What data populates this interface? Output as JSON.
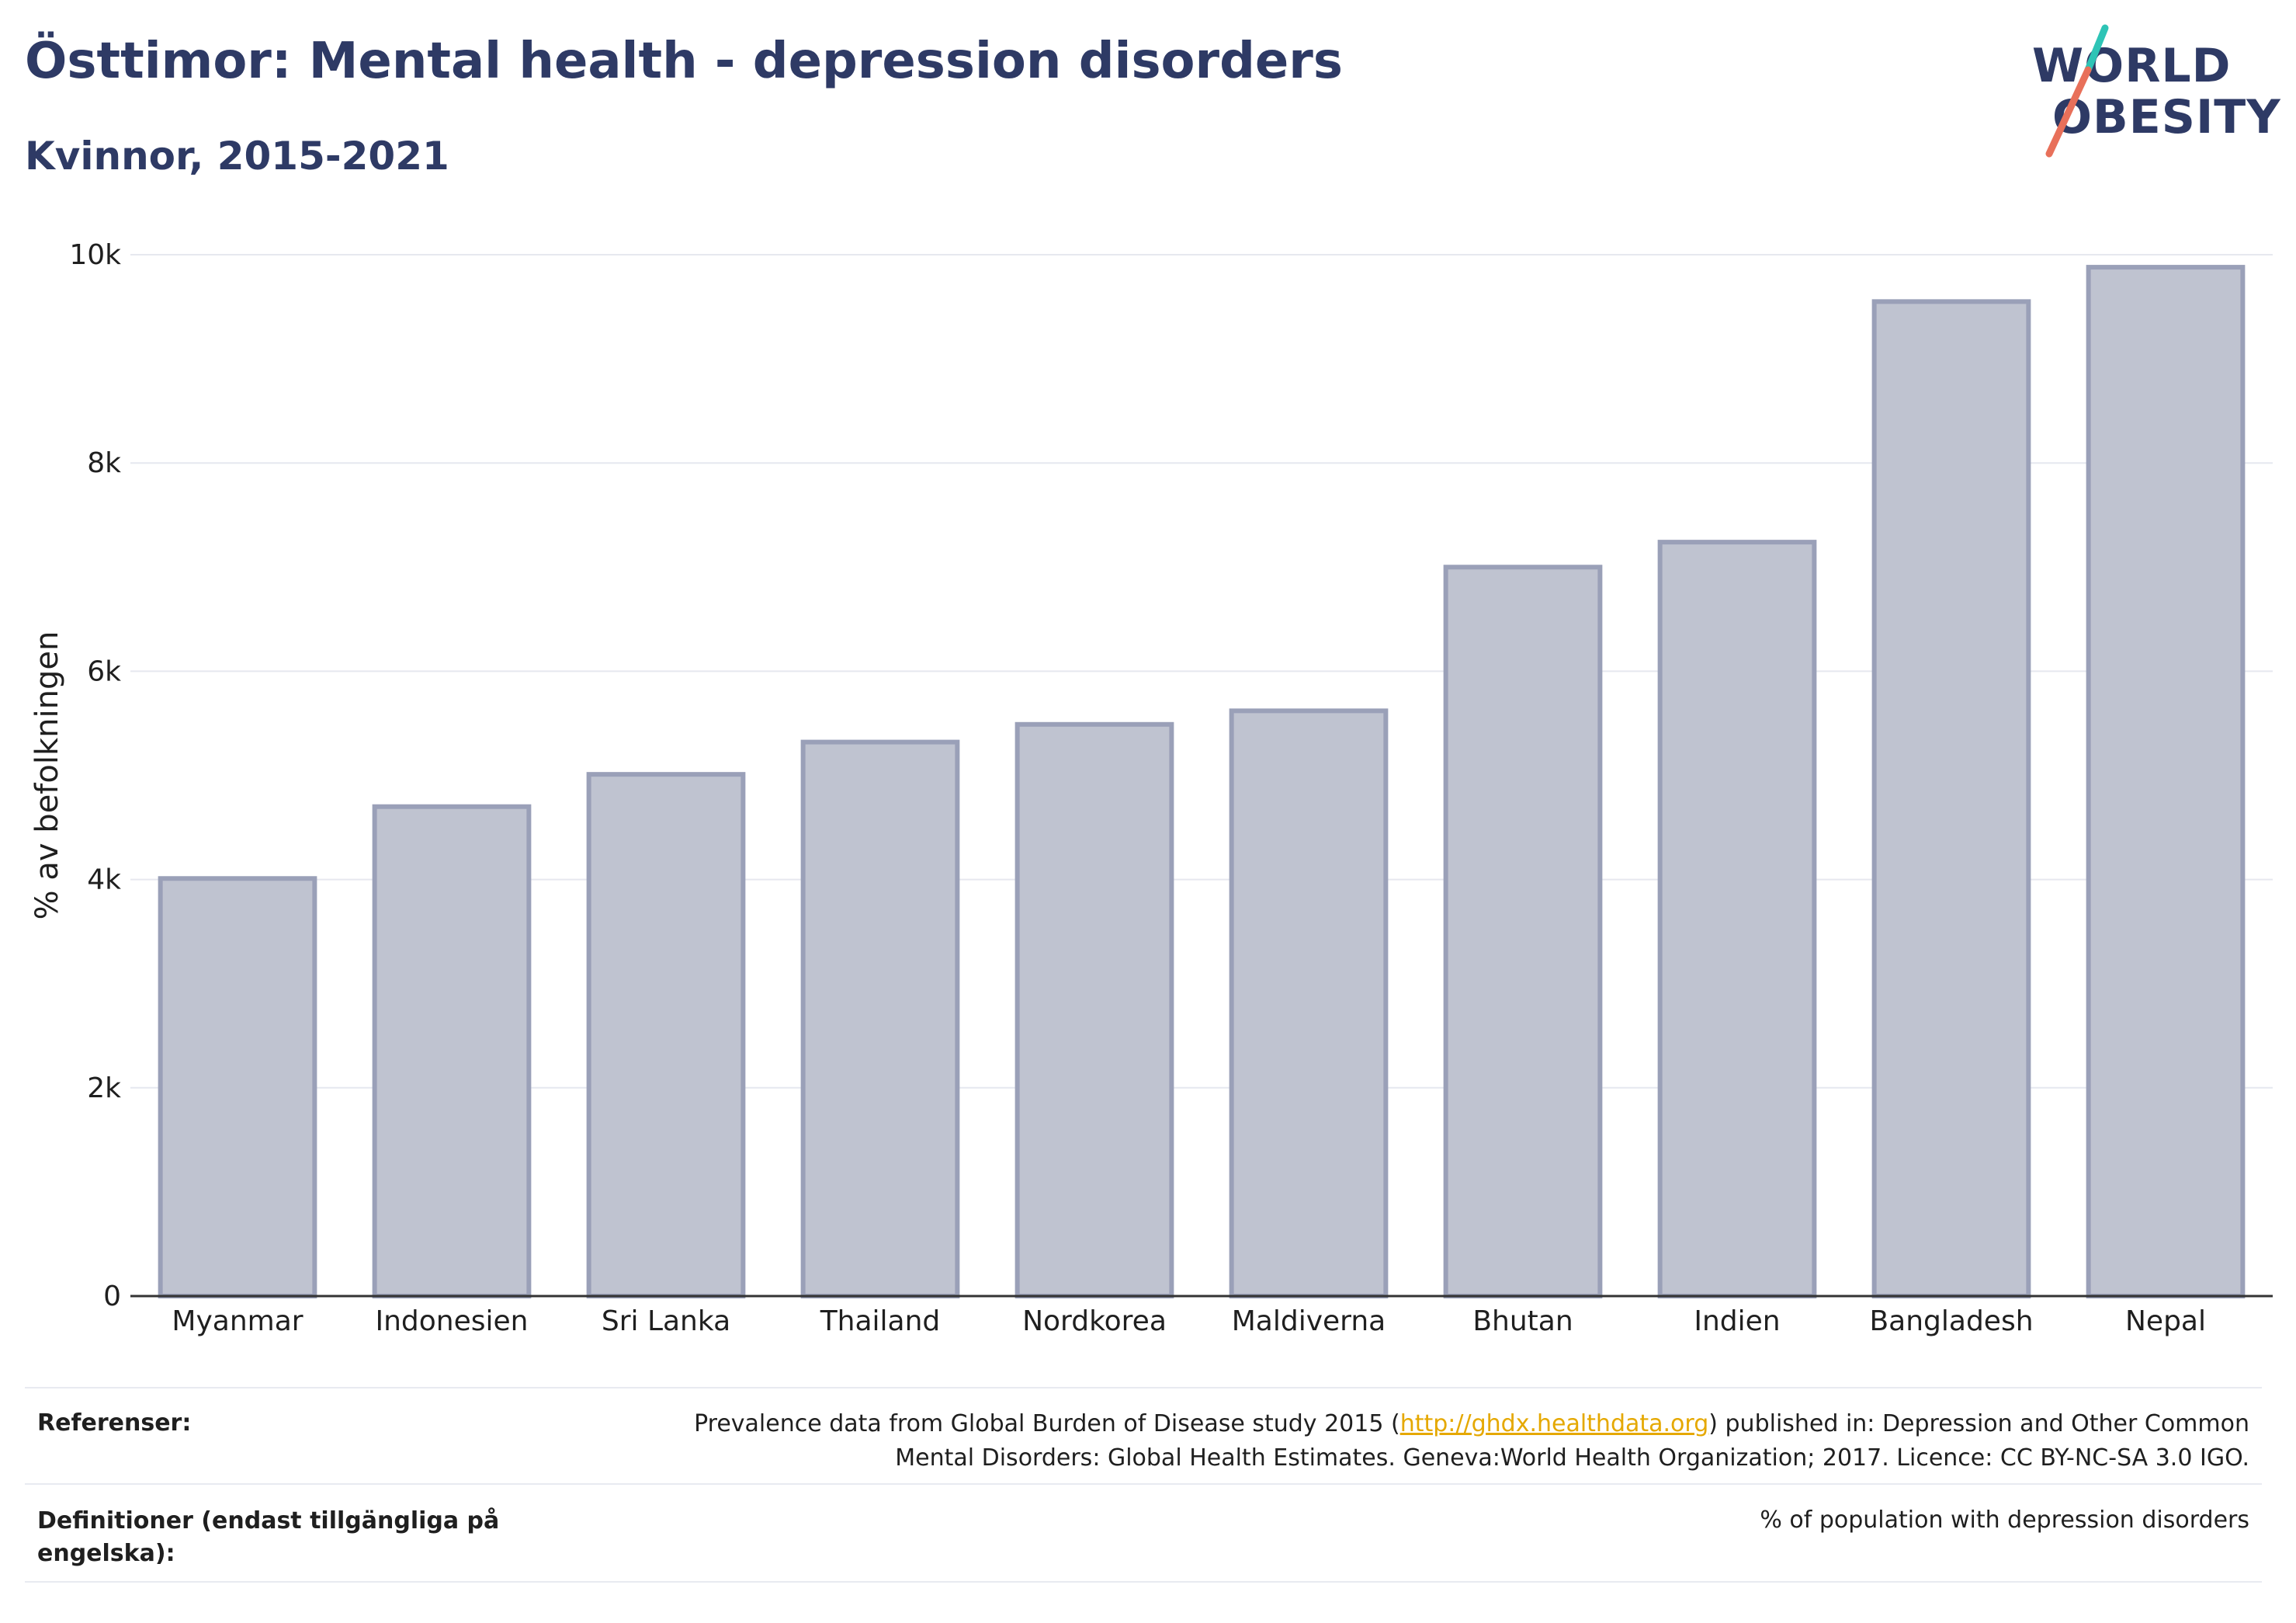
{
  "header": {
    "title": "Östtimor: Mental health - depression disorders",
    "subtitle": "Kvinnor, 2015-2021"
  },
  "logo": {
    "line1": "WORLD",
    "line2": "OBESITY",
    "colors": {
      "text": "#2e3a65",
      "teal": "#2ec4b6",
      "coral": "#e8705a"
    }
  },
  "chart_data": {
    "type": "bar",
    "categories": [
      "Myanmar",
      "Indonesien",
      "Sri Lanka",
      "Thailand",
      "Nordkorea",
      "Maldiverna",
      "Bhutan",
      "Indien",
      "Bangladesh",
      "Nepal"
    ],
    "values": [
      4010,
      4700,
      5010,
      5320,
      5490,
      5620,
      7000,
      7240,
      9550,
      9880
    ],
    "ylabel": "% av befolkningen",
    "ylim": [
      0,
      10000
    ],
    "yticks": [
      0,
      2000,
      4000,
      6000,
      8000,
      10000
    ],
    "ytick_labels": [
      "0",
      "2k",
      "4k",
      "6k",
      "8k",
      "10k"
    ],
    "grid": true,
    "colors": {
      "bar_fill": "#bfc3d0",
      "bar_stroke": "#9aa0b8",
      "grid": "#e6e8ef",
      "axis": "#333333"
    }
  },
  "footer": {
    "references_label": "Referenser:",
    "references_pre": "Prevalence data from Global Burden of Disease study 2015 (",
    "references_link": "http://ghdx.healthdata.org",
    "references_post1": ") published in: Depression and Other Common",
    "references_line2": "Mental Disorders: Global Health Estimates. Geneva:World Health Organization; 2017. Licence: CC BY-NC-SA 3.0 IGO.",
    "definitions_label": "Definitioner (endast tillgängliga på engelska):",
    "definitions_value": "% of population with depression disorders"
  }
}
